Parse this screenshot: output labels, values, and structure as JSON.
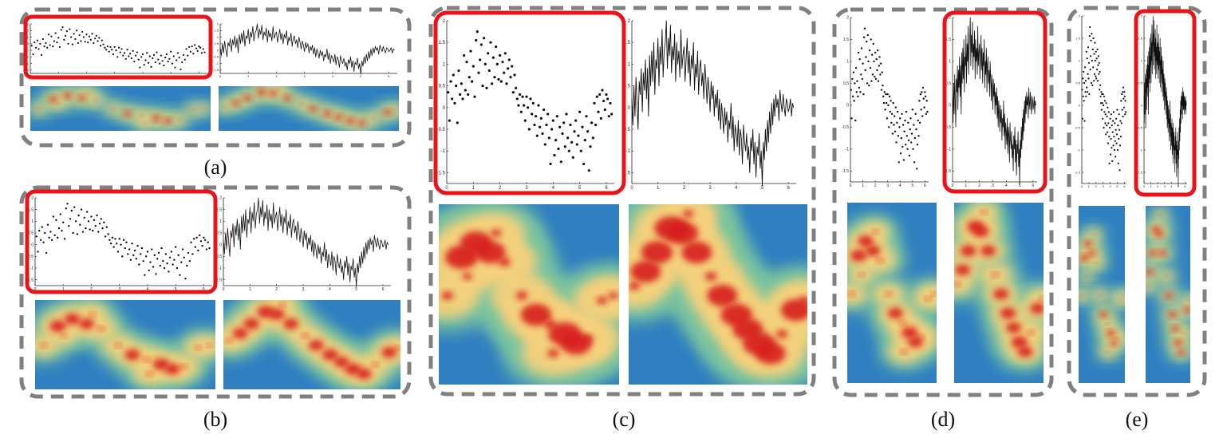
{
  "captions": {
    "a": "(a)",
    "b": "(b)",
    "c": "(c)",
    "d": "(d)",
    "e": "(e)"
  },
  "colors": {
    "dashed_border": "#808080",
    "highlight": "#e8141a",
    "heat_low": "#2f7fc1",
    "heat_mid": "#7cc49e",
    "heat_high_mid": "#f4d07c",
    "heat_high": "#d71f1f",
    "marks": "#111111"
  },
  "chart_data": {
    "type": "scatter",
    "xlim": [
      0,
      6.3
    ],
    "ylim": [
      -1.75,
      2.0
    ],
    "x_ticks": [
      "0",
      "1",
      "2",
      "3",
      "4",
      "5",
      "6"
    ],
    "y_ticks": [
      "-1.5",
      "-1",
      "-0.5",
      "0",
      "0.5",
      "1",
      "1.5",
      "2"
    ],
    "grid": false,
    "legend": "none",
    "scatter_points": [
      [
        0.05,
        0.35
      ],
      [
        0.1,
        -0.3
      ],
      [
        0.15,
        0.6
      ],
      [
        0.2,
        0.2
      ],
      [
        0.25,
        0.75
      ],
      [
        0.3,
        0.1
      ],
      [
        0.35,
        0.5
      ],
      [
        0.4,
        -0.35
      ],
      [
        0.45,
        0.85
      ],
      [
        0.5,
        0.3
      ],
      [
        0.55,
        0.55
      ],
      [
        0.6,
        0.2
      ],
      [
        0.65,
        1.2
      ],
      [
        0.7,
        0.4
      ],
      [
        0.75,
        1.05
      ],
      [
        0.8,
        0.3
      ],
      [
        0.85,
        0.7
      ],
      [
        0.9,
        1.3
      ],
      [
        0.95,
        0.6
      ],
      [
        1.0,
        0.95
      ],
      [
        1.05,
        0.25
      ],
      [
        1.1,
        1.55
      ],
      [
        1.15,
        1.75
      ],
      [
        1.2,
        0.8
      ],
      [
        1.25,
        1.1
      ],
      [
        1.3,
        1.45
      ],
      [
        1.35,
        0.5
      ],
      [
        1.4,
        1.6
      ],
      [
        1.45,
        1.0
      ],
      [
        1.5,
        0.45
      ],
      [
        1.55,
        1.25
      ],
      [
        1.6,
        0.85
      ],
      [
        1.65,
        1.5
      ],
      [
        1.7,
        0.55
      ],
      [
        1.75,
        1.15
      ],
      [
        1.8,
        0.7
      ],
      [
        1.85,
        1.4
      ],
      [
        1.9,
        1.0
      ],
      [
        1.95,
        0.65
      ],
      [
        2.0,
        1.2
      ],
      [
        2.05,
        0.6
      ],
      [
        2.1,
        1.05
      ],
      [
        2.15,
        0.8
      ],
      [
        2.2,
        1.25
      ],
      [
        2.25,
        0.55
      ],
      [
        2.3,
        0.9
      ],
      [
        2.35,
        1.1
      ],
      [
        2.4,
        0.7
      ],
      [
        2.45,
        0.95
      ],
      [
        2.5,
        0.35
      ],
      [
        2.55,
        0.75
      ],
      [
        2.6,
        0.45
      ],
      [
        2.65,
        0.2
      ],
      [
        2.7,
        0.05
      ],
      [
        2.75,
        0.3
      ],
      [
        2.8,
        -0.1
      ],
      [
        2.85,
        0.25
      ],
      [
        2.9,
        0.05
      ],
      [
        2.95,
        -0.3
      ],
      [
        3.0,
        0.25
      ],
      [
        3.05,
        0.0
      ],
      [
        3.1,
        -0.5
      ],
      [
        3.15,
        0.2
      ],
      [
        3.2,
        -0.15
      ],
      [
        3.25,
        0.1
      ],
      [
        3.3,
        -0.4
      ],
      [
        3.35,
        -0.2
      ],
      [
        3.4,
        -0.65
      ],
      [
        3.45,
        0.05
      ],
      [
        3.5,
        -0.45
      ],
      [
        3.55,
        -0.25
      ],
      [
        3.6,
        -0.6
      ],
      [
        3.65,
        -0.05
      ],
      [
        3.7,
        -0.85
      ],
      [
        3.75,
        -0.4
      ],
      [
        3.8,
        -0.15
      ],
      [
        3.85,
        -0.7
      ],
      [
        3.9,
        -1.3
      ],
      [
        3.95,
        -0.5
      ],
      [
        4.0,
        -0.3
      ],
      [
        4.05,
        -1.1
      ],
      [
        4.1,
        -0.75
      ],
      [
        4.15,
        -0.2
      ],
      [
        4.2,
        -0.95
      ],
      [
        4.25,
        -0.45
      ],
      [
        4.3,
        -1.25
      ],
      [
        4.35,
        -0.6
      ],
      [
        4.4,
        -0.35
      ],
      [
        4.45,
        -0.9
      ],
      [
        4.5,
        -0.15
      ],
      [
        4.55,
        -0.7
      ],
      [
        4.6,
        -1.0
      ],
      [
        4.65,
        -0.4
      ],
      [
        4.7,
        -0.8
      ],
      [
        4.75,
        -1.15
      ],
      [
        4.8,
        -0.55
      ],
      [
        4.85,
        -0.3
      ],
      [
        4.9,
        -0.85
      ],
      [
        4.95,
        -0.65
      ],
      [
        5.0,
        -0.1
      ],
      [
        5.05,
        -1.0
      ],
      [
        5.1,
        -0.45
      ],
      [
        5.15,
        -1.3
      ],
      [
        5.2,
        -0.75
      ],
      [
        5.25,
        -0.2
      ],
      [
        5.3,
        -0.55
      ],
      [
        5.35,
        -1.45
      ],
      [
        5.4,
        -0.9
      ],
      [
        5.45,
        -0.35
      ],
      [
        5.5,
        -0.7
      ],
      [
        5.55,
        0.1
      ],
      [
        5.6,
        -0.4
      ],
      [
        5.65,
        0.25
      ],
      [
        5.7,
        -0.1
      ],
      [
        5.75,
        0.3
      ],
      [
        5.8,
        -0.25
      ],
      [
        5.85,
        0.4
      ],
      [
        5.9,
        0.15
      ],
      [
        5.95,
        -0.05
      ],
      [
        6.0,
        0.3
      ],
      [
        6.05,
        0.2
      ],
      [
        6.1,
        -0.2
      ],
      [
        6.15,
        0.1
      ],
      [
        6.2,
        -0.15
      ]
    ],
    "line_x_step": 0.04,
    "line_values": [
      0.2,
      -0.4,
      0.5,
      -0.2,
      0.7,
      0.1,
      -0.5,
      0.6,
      0.3,
      0.9,
      -0.1,
      0.8,
      0.4,
      1.1,
      0.2,
      0.9,
      -0.2,
      1.2,
      0.5,
      1.3,
      0.6,
      1.5,
      0.3,
      1.1,
      0.9,
      1.6,
      0.5,
      1.4,
      1.0,
      1.8,
      0.7,
      1.3,
      1.5,
      2.0,
      0.9,
      1.6,
      1.2,
      1.9,
      0.8,
      1.4,
      1.1,
      1.7,
      0.6,
      1.5,
      1.0,
      1.3,
      0.7,
      1.8,
      0.9,
      1.2,
      1.4,
      0.6,
      1.1,
      1.6,
      0.8,
      1.3,
      0.5,
      1.2,
      0.9,
      1.5,
      0.4,
      1.0,
      0.7,
      1.3,
      0.3,
      0.9,
      1.1,
      0.5,
      0.8,
      0.2,
      1.0,
      0.6,
      0.1,
      0.7,
      0.4,
      -0.1,
      0.6,
      0.2,
      0.5,
      -0.2,
      0.3,
      0.0,
      0.4,
      -0.3,
      0.2,
      -0.5,
      0.1,
      -0.2,
      -0.6,
      0.0,
      -0.4,
      -0.1,
      -0.8,
      -0.3,
      -0.5,
      0.1,
      -0.7,
      -0.2,
      -1.0,
      -0.4,
      -0.6,
      -0.9,
      -0.3,
      -1.1,
      -0.5,
      -0.7,
      -1.3,
      -0.4,
      -0.8,
      -1.0,
      -0.6,
      -1.2,
      -0.9,
      -1.5,
      -0.7,
      -1.0,
      -0.5,
      -1.3,
      -0.8,
      -1.6,
      -0.9,
      -1.1,
      -0.6,
      -1.4,
      -1.0,
      -1.8,
      -0.8,
      -1.2,
      -0.5,
      -1.0,
      -0.3,
      -0.8,
      -0.1,
      -0.6,
      0.1,
      -0.4,
      0.2,
      -0.2,
      0.3,
      0.0,
      0.2,
      -0.3,
      0.4,
      0.1,
      -0.1,
      0.3,
      0.0,
      -0.2,
      0.2,
      0.1,
      -0.1,
      0.0,
      0.2,
      -0.2,
      0.1,
      0.0
    ],
    "heatmap_blobs_points": [
      [
        0.3,
        0.1,
        0.7
      ],
      [
        0.8,
        0.9,
        0.9
      ],
      [
        1.3,
        1.2,
        0.85
      ],
      [
        1.8,
        1.0,
        0.8
      ],
      [
        2.3,
        0.8,
        0.75
      ],
      [
        2.9,
        0.1,
        0.7
      ],
      [
        3.4,
        -0.3,
        0.8
      ],
      [
        3.9,
        -0.5,
        0.75
      ],
      [
        4.4,
        -0.7,
        0.9
      ],
      [
        4.8,
        -0.9,
        0.8
      ],
      [
        5.2,
        -0.8,
        0.7
      ],
      [
        5.7,
        0.0,
        0.6
      ],
      [
        6.1,
        0.1,
        0.5
      ],
      [
        1.0,
        0.5,
        0.5
      ],
      [
        2.0,
        1.4,
        0.6
      ],
      [
        4.0,
        -1.1,
        0.7
      ]
    ],
    "heatmap_blobs_line": [
      [
        0.2,
        0.3,
        0.7
      ],
      [
        0.6,
        0.6,
        0.8
      ],
      [
        1.0,
        1.0,
        0.85
      ],
      [
        1.5,
        1.5,
        0.95
      ],
      [
        1.9,
        1.4,
        0.85
      ],
      [
        2.4,
        1.0,
        0.8
      ],
      [
        2.9,
        0.5,
        0.75
      ],
      [
        3.3,
        0.1,
        0.8
      ],
      [
        3.8,
        -0.3,
        0.85
      ],
      [
        4.2,
        -0.6,
        0.8
      ],
      [
        4.6,
        -0.9,
        0.9
      ],
      [
        5.0,
        -1.1,
        0.8
      ],
      [
        5.4,
        -0.7,
        0.7
      ],
      [
        5.9,
        -0.2,
        0.8
      ],
      [
        6.2,
        0.0,
        0.6
      ],
      [
        2.1,
        1.8,
        0.6
      ]
    ]
  }
}
